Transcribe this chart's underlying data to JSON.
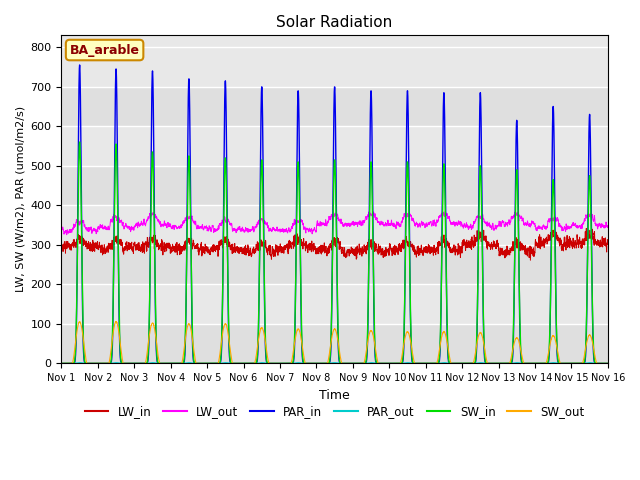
{
  "title": "Solar Radiation",
  "xlabel": "Time",
  "ylabel": "LW, SW (W/m2), PAR (umol/m2/s)",
  "site_label": "BA_arable",
  "ylim": [
    0,
    830
  ],
  "xlim_days": 15,
  "colors": {
    "LW_in": "#cc0000",
    "LW_out": "#ff00ff",
    "PAR_in": "#0000ee",
    "PAR_out": "#00cccc",
    "SW_in": "#00dd00",
    "SW_out": "#ffaa00"
  },
  "background_color": "#e8e8e8",
  "n_days": 15,
  "pts_per_day": 288,
  "lw_in_base": 300,
  "lw_out_base": 345,
  "par_in_peak": [
    755,
    745,
    740,
    720,
    715,
    700,
    690,
    700,
    690,
    690,
    685,
    685,
    615,
    650,
    630
  ],
  "sw_in_peak": [
    560,
    555,
    535,
    525,
    520,
    515,
    510,
    515,
    510,
    510,
    505,
    500,
    490,
    465,
    475
  ],
  "sw_out_peak": [
    105,
    105,
    102,
    100,
    100,
    90,
    87,
    87,
    83,
    80,
    80,
    78,
    65,
    70,
    72
  ]
}
